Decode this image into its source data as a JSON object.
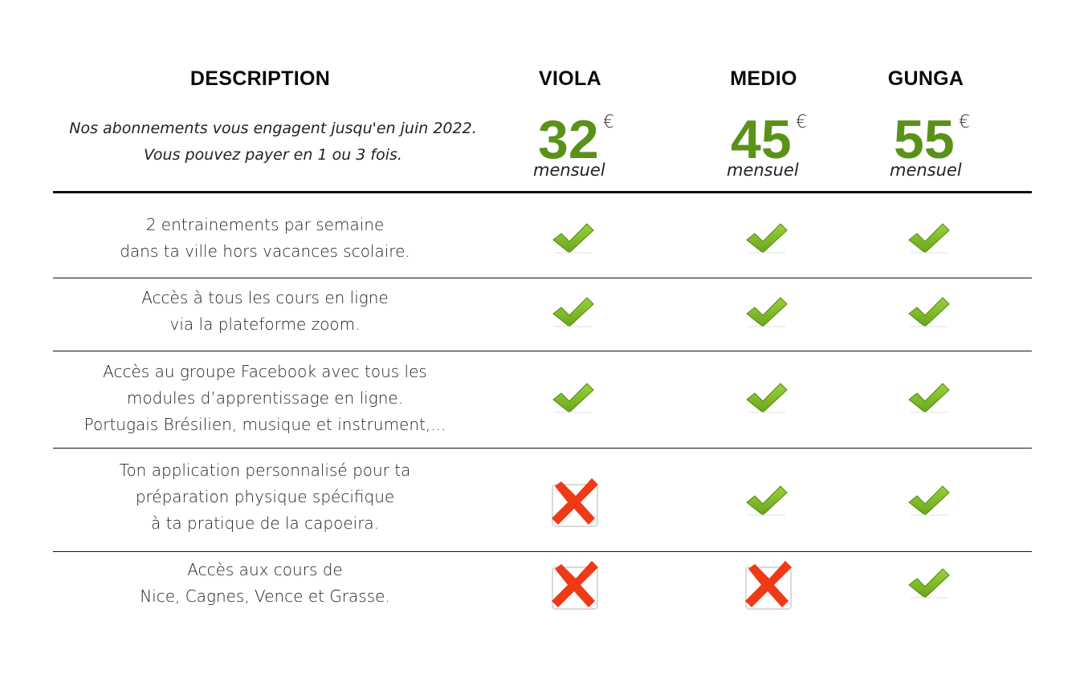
{
  "header": {
    "description": "DESCRIPTION",
    "plans": [
      {
        "name": "VIOLA",
        "price": "32",
        "currency": "€",
        "period": "mensuel"
      },
      {
        "name": "MEDIO",
        "price": "45",
        "currency": "€",
        "period": "mensuel"
      },
      {
        "name": "GUNGA",
        "price": "55",
        "currency": "€",
        "period": "mensuel"
      }
    ],
    "intro_line1": "Nos abonnements vous engagent jusqu'en juin 2022.",
    "intro_line2": "Vous pouvez payer en 1 ou 3 fois."
  },
  "features": [
    {
      "lines": [
        "2 entrainements par semaine",
        "dans ta ville hors vacances scolaire."
      ],
      "included": [
        true,
        true,
        true
      ]
    },
    {
      "lines": [
        "Accès à tous les cours en ligne",
        "via la plateforme zoom."
      ],
      "included": [
        true,
        true,
        true
      ]
    },
    {
      "lines": [
        "Accès au groupe Facebook avec tous les",
        "modules d’apprentissage en ligne.",
        "Portugais Brésilien, musique et instrument,..."
      ],
      "included": [
        true,
        true,
        true
      ]
    },
    {
      "lines": [
        "Ton application personnalisé pour ta",
        "préparation physique spécifique",
        "à ta pratique de la capoeira."
      ],
      "included": [
        false,
        true,
        true
      ]
    },
    {
      "lines": [
        "Accès aux cours de",
        "Nice, Cagnes, Vence et Grasse."
      ],
      "included": [
        false,
        false,
        true
      ]
    }
  ],
  "icons": {
    "included": "check-icon",
    "excluded": "cross-icon"
  },
  "colors": {
    "price": "#5a9219",
    "check": "#6aa51c",
    "cross": "#ee3a17"
  }
}
